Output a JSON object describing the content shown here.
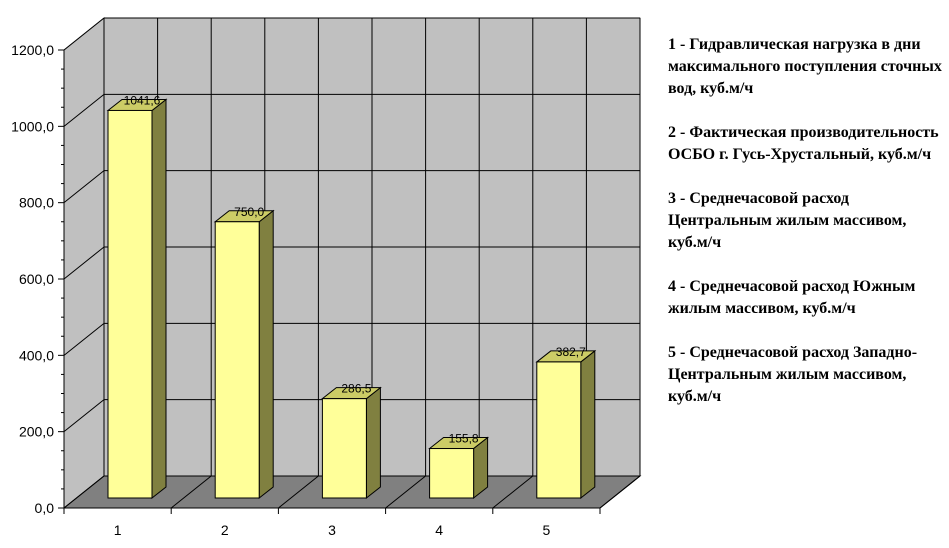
{
  "chart_data": {
    "type": "bar",
    "categories": [
      "1",
      "2",
      "3",
      "4",
      "5"
    ],
    "values": [
      1041.6,
      750.0,
      286.5,
      155.8,
      382.7
    ],
    "data_labels": [
      "1041,6",
      "750,0",
      "286,5",
      "155,8",
      "382,7"
    ],
    "ylim": [
      0,
      1200
    ],
    "yticks": [
      0,
      200,
      400,
      600,
      800,
      1000,
      1200
    ],
    "ytick_labels": [
      "0,0",
      "200,0",
      "400,0",
      "600,0",
      "800,0",
      "1000,0",
      "1200,0"
    ],
    "grid": true,
    "legend_position": "right",
    "legend": [
      "1 - Гидравлическая нагрузка в дни максимального поступления сточных вод, куб.м/ч",
      "2 - Фактическая производительность ОСБО г. Гусь-Хрустальный, куб.м/ч",
      "3 - Среднечасовой расход Центральным жилым массивом, куб.м/ч",
      "4 - Среднечасовой расход Южным жилым массивом, куб.м/ч",
      "5 - Среднечасовой расход Западно-Центральным жилым массивом, куб.м/ч"
    ],
    "colors": {
      "wall": "#c0c0c0",
      "floor": "#808080",
      "bar_front": "#ffff99",
      "bar_side": "#808040",
      "bar_top": "#cccc66",
      "grid": "#000000"
    }
  }
}
